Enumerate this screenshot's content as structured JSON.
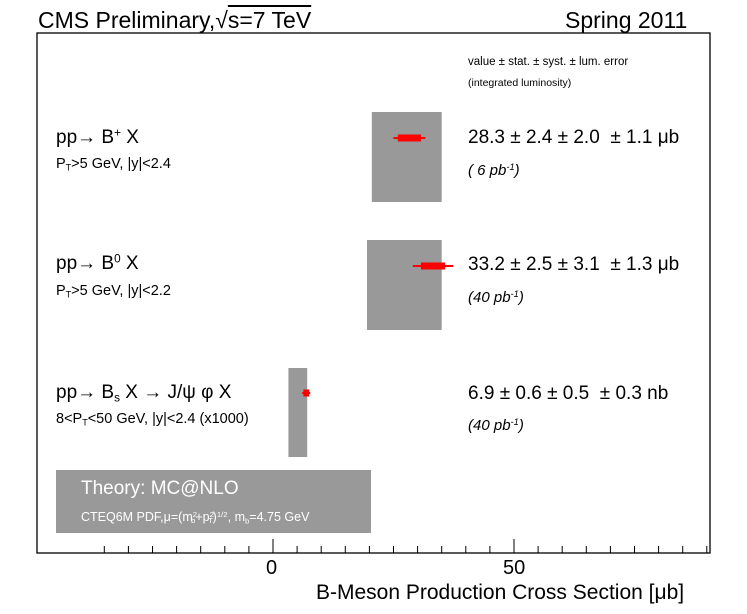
{
  "header": {
    "left_prefix": "CMS Preliminary,",
    "sqrt": "√",
    "energy": "s=7 TeV",
    "right": "Spring 2011"
  },
  "legend_header": {
    "line1": "value ± stat. ± syst. ± lum. error",
    "line2": "(integrated luminosity)"
  },
  "theory": {
    "name": "Theory: MC@NLO",
    "pdf": "CTEQ6M PDF,",
    "mu": "μ=(m",
    "mu_sub_b": "b",
    "mu_sup_2a": "2",
    "plus_p": "+p",
    "mu_sub_t": "T",
    "mu_sup_2b": "2",
    "pow": ")",
    "pow_sup": "1/2",
    "mb": ", m",
    "mb_sub": "b",
    "mb_val": "=4.75 GeV"
  },
  "colors": {
    "theory_band": "#999999",
    "measurement": "#ff0000",
    "frame": "#000000"
  },
  "chart_data": {
    "type": "scatter",
    "title": "CMS Preliminary, √s=7 TeV",
    "subtitle": "Spring 2011",
    "xlabel": "B-Meson Production Cross Section [μb]",
    "xlim": [
      -22,
      41
    ],
    "ticks": [
      0,
      50
    ],
    "series": [
      {
        "process": "pp→ B⁺ X",
        "cuts": "PT>5 GeV, |y|<2.4",
        "value": 28.3,
        "stat": 2.4,
        "syst": 2.0,
        "lum": 1.1,
        "unit": "μb",
        "lumi": "6 pb-1",
        "theory_range": [
          20.5,
          35.0
        ]
      },
      {
        "process": "pp→ B⁰ X",
        "cuts": "PT>5 GeV, |y|<2.2",
        "value": 33.2,
        "stat": 2.5,
        "syst": 3.1,
        "lum": 1.3,
        "unit": "μb",
        "lumi": "40 pb-1",
        "theory_range": [
          19.5,
          35.0
        ]
      },
      {
        "process": "pp→ Bs X → J/ψ φ X",
        "cuts": "8<PT<50 GeV, |y|<2.4 (x1000)",
        "value": 6.9,
        "stat": 0.6,
        "syst": 0.5,
        "lum": 0.3,
        "unit": "nb",
        "lumi": "40 pb-1",
        "theory_range": [
          3.2,
          7.1
        ]
      }
    ]
  },
  "rows": [
    {
      "proc_a": "pp→ B",
      "proc_sup": "+",
      "proc_b": " X",
      "cut_a": "P",
      "cut_sub": "T",
      "cut_b": ">5 GeV, |y|<2.4",
      "value_text": "28.3 ± 2.4 ± 2.0  ± 1.1 μb",
      "lumi_a": "( 6 pb",
      "lumi_sup": "-1",
      "lumi_b": ")"
    },
    {
      "proc_a": "pp→ B",
      "proc_sup": "0",
      "proc_b": " X",
      "cut_a": "P",
      "cut_sub": "T",
      "cut_b": ">5 GeV, |y|<2.2",
      "value_text": "33.2 ± 2.5 ± 3.1  ± 1.3 μb",
      "lumi_a": "(40 pb",
      "lumi_sup": "-1",
      "lumi_b": ")"
    },
    {
      "proc_a": "pp→ B",
      "proc_sub": "s",
      "proc_b": " X → J/ψ φ X",
      "cut_a": "8<P",
      "cut_sub": "T",
      "cut_b": "<50 GeV, |y|<2.4 (x1000)",
      "value_text": "6.9 ± 0.6 ± 0.5  ± 0.3 nb",
      "lumi_a": "(40 pb",
      "lumi_sup": "-1",
      "lumi_b": ")"
    }
  ],
  "axis": {
    "tick0": "0",
    "tick50": "50",
    "xlabel": "B-Meson Production Cross Section [μb]"
  }
}
